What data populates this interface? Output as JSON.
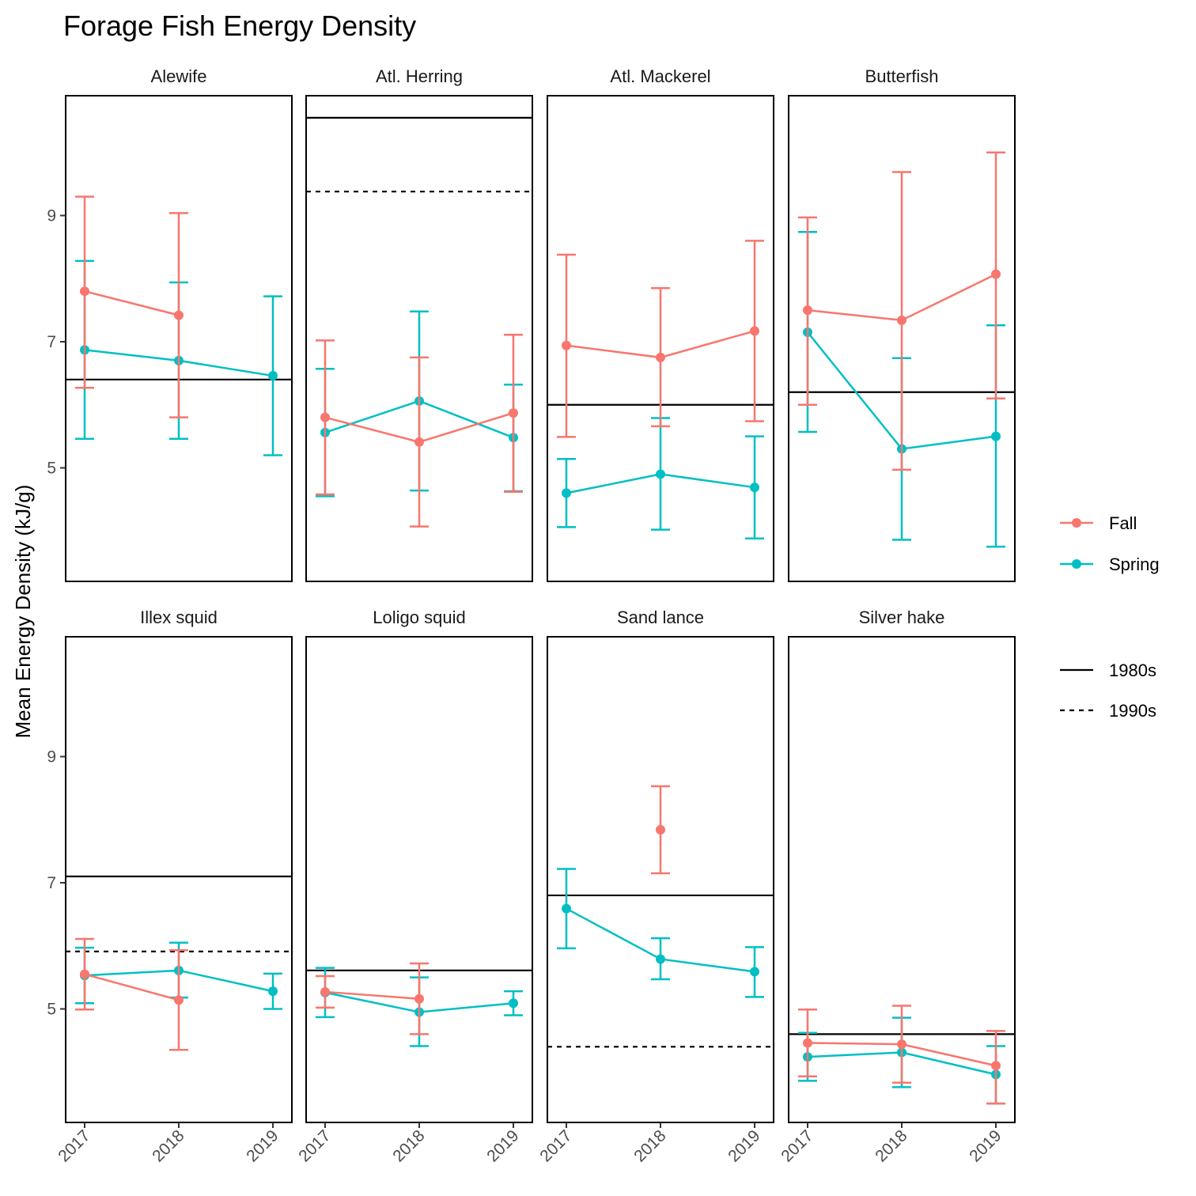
{
  "chart_data": {
    "type": "line",
    "title": "Forage Fish Energy Density",
    "ylabel": "Mean Energy Density (kJ/g)",
    "xlabel": "",
    "x": [
      "2017",
      "2018",
      "2019"
    ],
    "ylim": [
      3.2,
      10.9
    ],
    "yticks": [
      "5",
      "7",
      "9"
    ],
    "grid": false,
    "layout": "facets 4 columns x 2 rows",
    "legend_position": "right",
    "colors": {
      "Fall": "#F8766D",
      "Spring": "#00BFC4",
      "reference": "#000000"
    },
    "legend": {
      "season": [
        {
          "name": "Fall",
          "color": "#F8766D"
        },
        {
          "name": "Spring",
          "color": "#00BFC4"
        }
      ],
      "reference": [
        {
          "name": "1980s",
          "style": "solid"
        },
        {
          "name": "1990s",
          "style": "dashed"
        }
      ]
    },
    "panels": [
      {
        "name": "Alewife",
        "ref_1980s": 6.4,
        "ref_1990s": null,
        "series": [
          {
            "name": "Fall",
            "points": [
              {
                "x": "2017",
                "y": 7.8,
                "lo": 6.27,
                "hi": 9.3
              },
              {
                "x": "2018",
                "y": 7.42,
                "lo": 5.8,
                "hi": 9.04
              }
            ]
          },
          {
            "name": "Spring",
            "points": [
              {
                "x": "2017",
                "y": 6.87,
                "lo": 5.46,
                "hi": 8.28
              },
              {
                "x": "2018",
                "y": 6.7,
                "lo": 5.46,
                "hi": 7.94
              },
              {
                "x": "2019",
                "y": 6.46,
                "lo": 5.2,
                "hi": 7.72
              }
            ]
          }
        ]
      },
      {
        "name": "Atl. Herring",
        "ref_1980s": 10.55,
        "ref_1990s": 9.38,
        "series": [
          {
            "name": "Fall",
            "points": [
              {
                "x": "2017",
                "y": 5.8,
                "lo": 4.58,
                "hi": 7.02
              },
              {
                "x": "2018",
                "y": 5.41,
                "lo": 4.07,
                "hi": 6.75
              },
              {
                "x": "2019",
                "y": 5.87,
                "lo": 4.62,
                "hi": 7.11
              }
            ]
          },
          {
            "name": "Spring",
            "points": [
              {
                "x": "2017",
                "y": 5.56,
                "lo": 4.55,
                "hi": 6.57
              },
              {
                "x": "2018",
                "y": 6.06,
                "lo": 4.64,
                "hi": 7.48
              },
              {
                "x": "2019",
                "y": 5.48,
                "lo": 4.63,
                "hi": 6.32
              }
            ]
          }
        ]
      },
      {
        "name": "Atl. Mackerel",
        "ref_1980s": 6.0,
        "ref_1990s": null,
        "series": [
          {
            "name": "Fall",
            "points": [
              {
                "x": "2017",
                "y": 6.94,
                "lo": 5.49,
                "hi": 8.38
              },
              {
                "x": "2018",
                "y": 6.75,
                "lo": 5.66,
                "hi": 7.85
              },
              {
                "x": "2019",
                "y": 7.17,
                "lo": 5.74,
                "hi": 8.6
              }
            ]
          },
          {
            "name": "Spring",
            "points": [
              {
                "x": "2017",
                "y": 4.6,
                "lo": 4.06,
                "hi": 5.14
              },
              {
                "x": "2018",
                "y": 4.9,
                "lo": 4.02,
                "hi": 5.79
              },
              {
                "x": "2019",
                "y": 4.69,
                "lo": 3.88,
                "hi": 5.5
              }
            ]
          }
        ]
      },
      {
        "name": "Butterfish",
        "ref_1980s": 6.2,
        "ref_1990s": null,
        "series": [
          {
            "name": "Fall",
            "points": [
              {
                "x": "2017",
                "y": 7.5,
                "lo": 6.0,
                "hi": 8.97
              },
              {
                "x": "2018",
                "y": 7.34,
                "lo": 4.97,
                "hi": 9.69
              },
              {
                "x": "2019",
                "y": 8.07,
                "lo": 6.1,
                "hi": 10.0
              }
            ]
          },
          {
            "name": "Spring",
            "points": [
              {
                "x": "2017",
                "y": 7.15,
                "lo": 5.57,
                "hi": 8.74
              },
              {
                "x": "2018",
                "y": 5.3,
                "lo": 3.86,
                "hi": 6.74
              },
              {
                "x": "2019",
                "y": 5.5,
                "lo": 3.75,
                "hi": 7.26
              }
            ]
          }
        ]
      },
      {
        "name": "Illex squid",
        "ref_1980s": 7.1,
        "ref_1990s": 5.91,
        "series": [
          {
            "name": "Fall",
            "points": [
              {
                "x": "2017",
                "y": 5.55,
                "lo": 4.99,
                "hi": 6.11
              },
              {
                "x": "2018",
                "y": 5.14,
                "lo": 4.35,
                "hi": 5.93
              },
              {
                "x": "2019",
                "y": null,
                "lo": null,
                "hi": null
              }
            ]
          },
          {
            "name": "Spring",
            "points": [
              {
                "x": "2017",
                "y": 5.53,
                "lo": 5.09,
                "hi": 5.97
              },
              {
                "x": "2018",
                "y": 5.61,
                "lo": 5.18,
                "hi": 6.05
              },
              {
                "x": "2019",
                "y": 5.28,
                "lo": 5.0,
                "hi": 5.56
              }
            ]
          }
        ]
      },
      {
        "name": "Loligo squid",
        "ref_1980s": 5.61,
        "ref_1990s": null,
        "series": [
          {
            "name": "Fall",
            "points": [
              {
                "x": "2017",
                "y": 5.27,
                "lo": 5.02,
                "hi": 5.52
              },
              {
                "x": "2018",
                "y": 5.16,
                "lo": 4.6,
                "hi": 5.72
              }
            ]
          },
          {
            "name": "Spring",
            "points": [
              {
                "x": "2017",
                "y": 5.26,
                "lo": 4.87,
                "hi": 5.65
              },
              {
                "x": "2018",
                "y": 4.95,
                "lo": 4.41,
                "hi": 5.5
              },
              {
                "x": "2019",
                "y": 5.09,
                "lo": 4.9,
                "hi": 5.28
              }
            ]
          }
        ]
      },
      {
        "name": "Sand lance",
        "ref_1980s": 6.8,
        "ref_1990s": 4.4,
        "series": [
          {
            "name": "Fall",
            "points": [
              {
                "x": "2018",
                "y": 7.84,
                "lo": 7.15,
                "hi": 8.53
              }
            ]
          },
          {
            "name": "Spring",
            "points": [
              {
                "x": "2017",
                "y": 6.59,
                "lo": 5.96,
                "hi": 7.22
              },
              {
                "x": "2018",
                "y": 5.79,
                "lo": 5.47,
                "hi": 6.12
              },
              {
                "x": "2019",
                "y": 5.59,
                "lo": 5.19,
                "hi": 5.98
              }
            ]
          }
        ]
      },
      {
        "name": "Silver hake",
        "ref_1980s": 4.6,
        "ref_1990s": null,
        "series": [
          {
            "name": "Fall",
            "points": [
              {
                "x": "2017",
                "y": 4.46,
                "lo": 3.93,
                "hi": 4.99
              },
              {
                "x": "2018",
                "y": 4.44,
                "lo": 3.83,
                "hi": 5.05
              },
              {
                "x": "2019",
                "y": 4.1,
                "lo": 3.5,
                "hi": 4.65
              }
            ]
          },
          {
            "name": "Spring",
            "points": [
              {
                "x": "2017",
                "y": 4.24,
                "lo": 3.86,
                "hi": 4.62
              },
              {
                "x": "2018",
                "y": 4.31,
                "lo": 3.76,
                "hi": 4.86
              },
              {
                "x": "2019",
                "y": 3.96,
                "lo": 3.5,
                "hi": 4.41
              }
            ]
          }
        ]
      }
    ]
  }
}
